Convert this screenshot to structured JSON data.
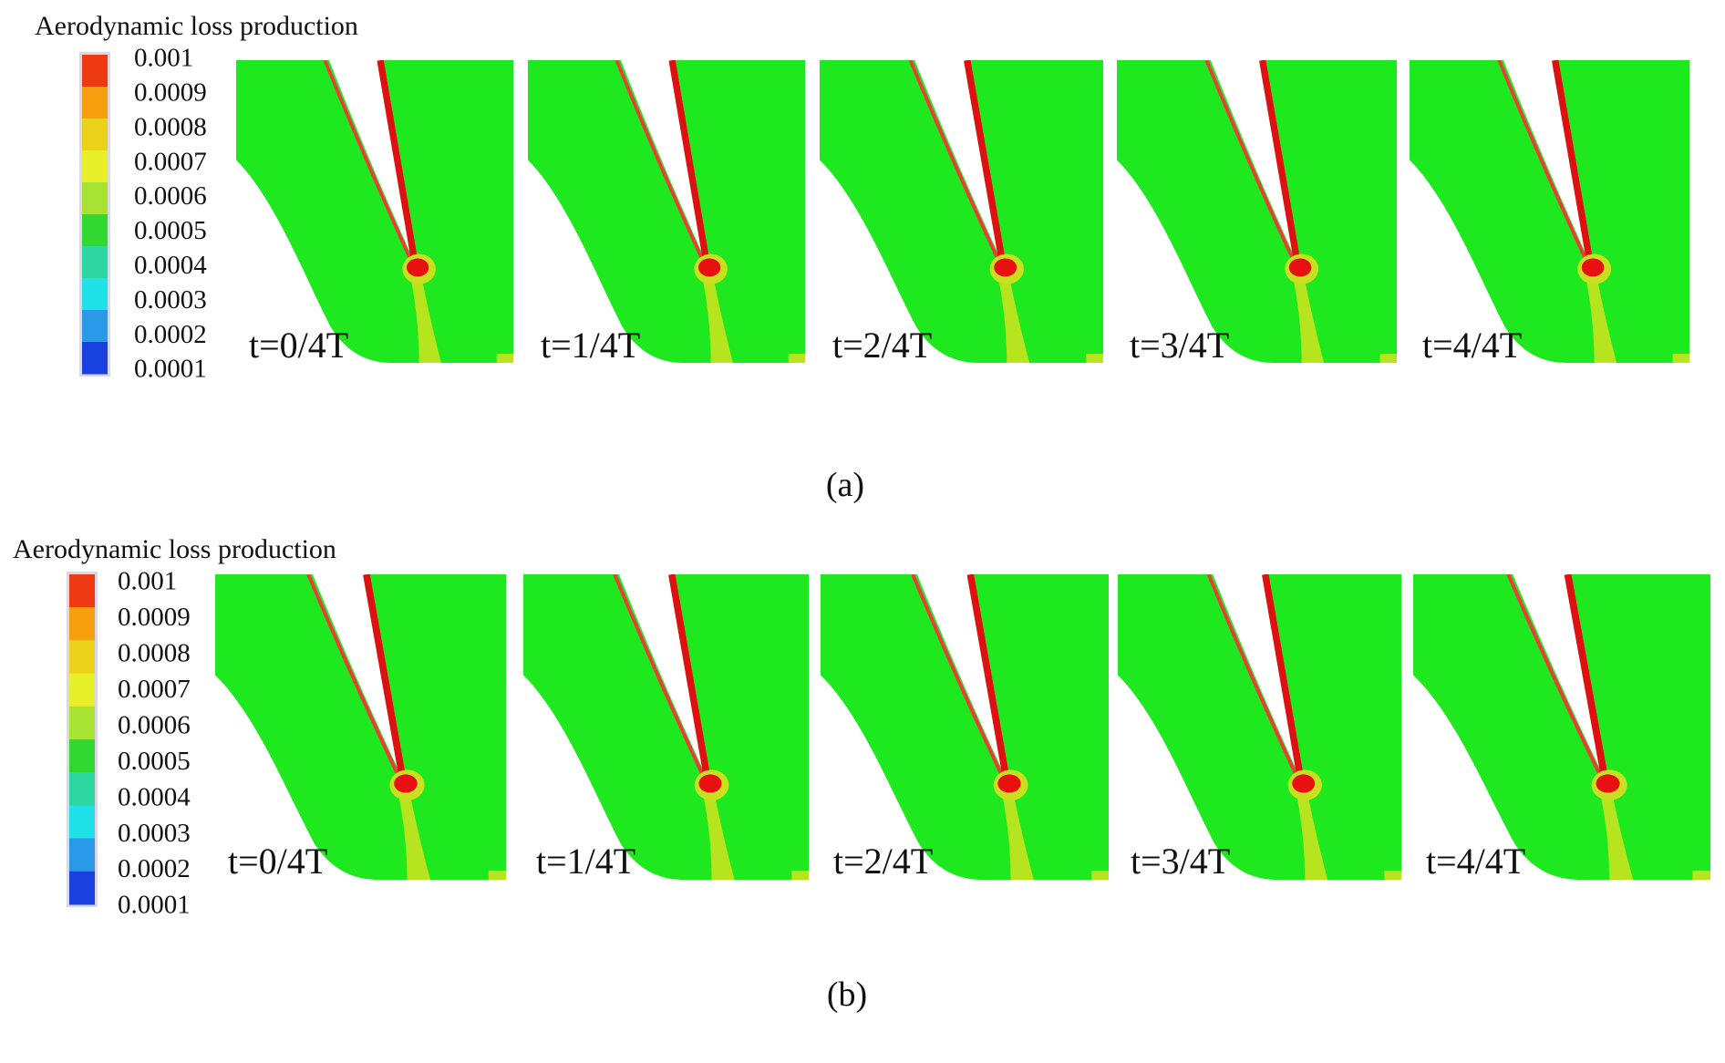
{
  "panels": [
    {
      "legend_title": "Aerodynamic loss production",
      "legend_labels": [
        "0.001",
        "0.0009",
        "0.0008",
        "0.0007",
        "0.0006",
        "0.0005",
        "0.0004",
        "0.0003",
        "0.0002",
        "0.0001"
      ],
      "frames": [
        "t=0/4T",
        "t=1/4T",
        "t=2/4T",
        "t=3/4T",
        "t=4/4T"
      ],
      "caption": "(a)"
    },
    {
      "legend_title": "Aerodynamic loss production",
      "legend_labels": [
        "0.001",
        "0.0009",
        "0.0008",
        "0.0007",
        "0.0006",
        "0.0005",
        "0.0004",
        "0.0003",
        "0.0002",
        "0.0001"
      ],
      "frames": [
        "t=0/4T",
        "t=1/4T",
        "t=2/4T",
        "t=3/4T",
        "t=4/4T"
      ],
      "caption": "(b)"
    }
  ]
}
